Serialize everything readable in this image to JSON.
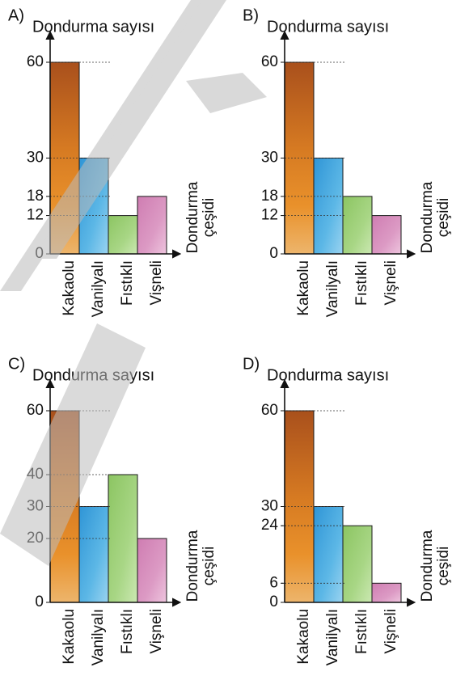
{
  "colors": {
    "kakaolu": "#dd7d22",
    "vanilyali": "#43a6dd",
    "fistikli": "#9ccf74",
    "visneli": "#d98cbc",
    "watermark": "#bbbbbb"
  },
  "chart_data": [
    {
      "type": "bar",
      "option": "A)",
      "ylabel": "Dondurma sayısı",
      "xlabel": "Dondurma çeşidi",
      "categories": [
        "Kakaolu",
        "Vanilyalı",
        "Fıstıklı",
        "Vişneli"
      ],
      "values": [
        60,
        30,
        12,
        18
      ],
      "yticks": [
        0,
        12,
        18,
        30,
        60
      ],
      "ylim": [
        0,
        60
      ]
    },
    {
      "type": "bar",
      "option": "B)",
      "ylabel": "Dondurma sayısı",
      "xlabel": "Dondurma çeşidi",
      "categories": [
        "Kakaolu",
        "Vanilyalı",
        "Fıstıklı",
        "Vişneli"
      ],
      "values": [
        60,
        30,
        18,
        12
      ],
      "yticks": [
        0,
        12,
        18,
        30,
        60
      ],
      "ylim": [
        0,
        60
      ]
    },
    {
      "type": "bar",
      "option": "C)",
      "ylabel": "Dondurma sayısı",
      "xlabel": "Dondurma çeşidi",
      "categories": [
        "Kakaolu",
        "Vanilyalı",
        "Fıstıklı",
        "Vişneli"
      ],
      "values": [
        60,
        30,
        40,
        20
      ],
      "yticks": [
        0,
        20,
        30,
        40,
        60
      ],
      "ylim": [
        0,
        60
      ]
    },
    {
      "type": "bar",
      "option": "D)",
      "ylabel": "Dondurma sayısı",
      "xlabel": "Dondurma çeşidi",
      "categories": [
        "Kakaolu",
        "Vanilyalı",
        "Fıstıklı",
        "Vişneli"
      ],
      "values": [
        60,
        30,
        24,
        6
      ],
      "yticks": [
        0,
        6,
        24,
        30,
        60
      ],
      "ylim": [
        0,
        60
      ]
    }
  ]
}
